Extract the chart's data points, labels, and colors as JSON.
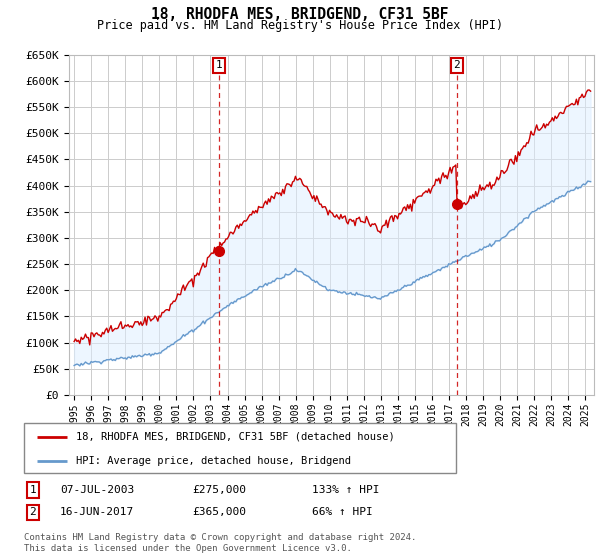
{
  "title": "18, RHODFA MES, BRIDGEND, CF31 5BF",
  "subtitle": "Price paid vs. HM Land Registry's House Price Index (HPI)",
  "ylim": [
    0,
    650000
  ],
  "yticks": [
    0,
    50000,
    100000,
    150000,
    200000,
    250000,
    300000,
    350000,
    400000,
    450000,
    500000,
    550000,
    600000,
    650000
  ],
  "xlim_start": 1994.7,
  "xlim_end": 2025.5,
  "legend_label_red": "18, RHODFA MES, BRIDGEND, CF31 5BF (detached house)",
  "legend_label_blue": "HPI: Average price, detached house, Bridgend",
  "sale1_date_num": 2003.52,
  "sale1_label": "1",
  "sale1_price": 275000,
  "sale1_text": "07-JUL-2003",
  "sale1_pct": "133% ↑ HPI",
  "sale2_date_num": 2017.46,
  "sale2_label": "2",
  "sale2_price": 365000,
  "sale2_text": "16-JUN-2017",
  "sale2_pct": "66% ↑ HPI",
  "footnote": "Contains HM Land Registry data © Crown copyright and database right 2024.\nThis data is licensed under the Open Government Licence v3.0.",
  "red_color": "#cc0000",
  "blue_color": "#6699cc",
  "blue_fill": "#ddeeff",
  "grid_color": "#cccccc",
  "background_color": "#ffffff"
}
